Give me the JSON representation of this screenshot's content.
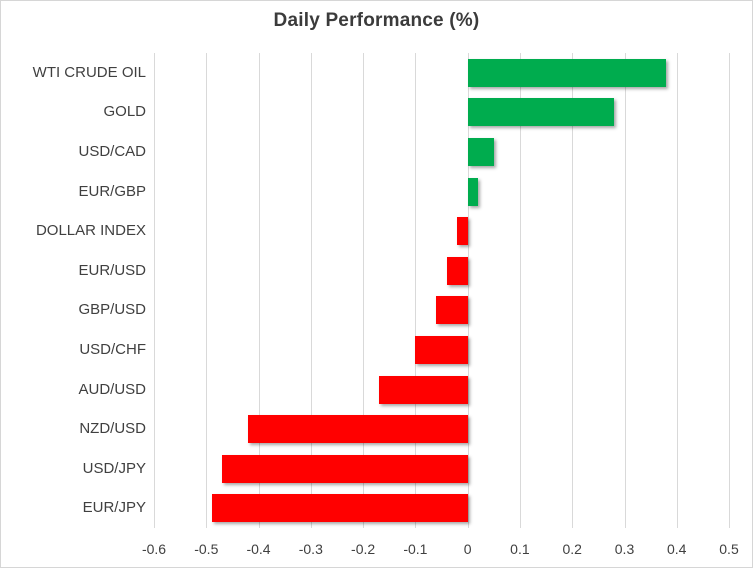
{
  "chart_data": {
    "type": "bar",
    "orientation": "horizontal",
    "title": "Daily Performance (%)",
    "categories": [
      "WTI CRUDE OIL",
      "GOLD",
      "USD/CAD",
      "EUR/GBP",
      "DOLLAR INDEX",
      "EUR/USD",
      "GBP/USD",
      "USD/CHF",
      "AUD/USD",
      "NZD/USD",
      "USD/JPY",
      "EUR/JPY"
    ],
    "values": [
      0.38,
      0.28,
      0.05,
      0.02,
      -0.02,
      -0.04,
      -0.06,
      -0.1,
      -0.17,
      -0.42,
      -0.47,
      -0.49
    ],
    "xlabel": "",
    "ylabel": "",
    "xlim": [
      -0.6,
      0.5
    ],
    "x_ticks": [
      -0.6,
      -0.5,
      -0.4,
      -0.3,
      -0.2,
      -0.1,
      0,
      0.1,
      0.2,
      0.3,
      0.4,
      0.5
    ],
    "x_tick_labels": [
      "-0.6",
      "-0.5",
      "-0.4",
      "-0.3",
      "-0.2",
      "-0.1",
      "0",
      "0.1",
      "0.2",
      "0.3",
      "0.4",
      "0.5"
    ],
    "grid": "vertical-on",
    "legend": "none",
    "colors": {
      "positive_bar": "#00ac4e",
      "negative_bar": "#ff0000",
      "gridline": "#d9d9d9",
      "axis_text": "#404040",
      "title_text": "#3b3b3b",
      "frame_border": "#d6d6d6",
      "background": "#ffffff"
    }
  }
}
